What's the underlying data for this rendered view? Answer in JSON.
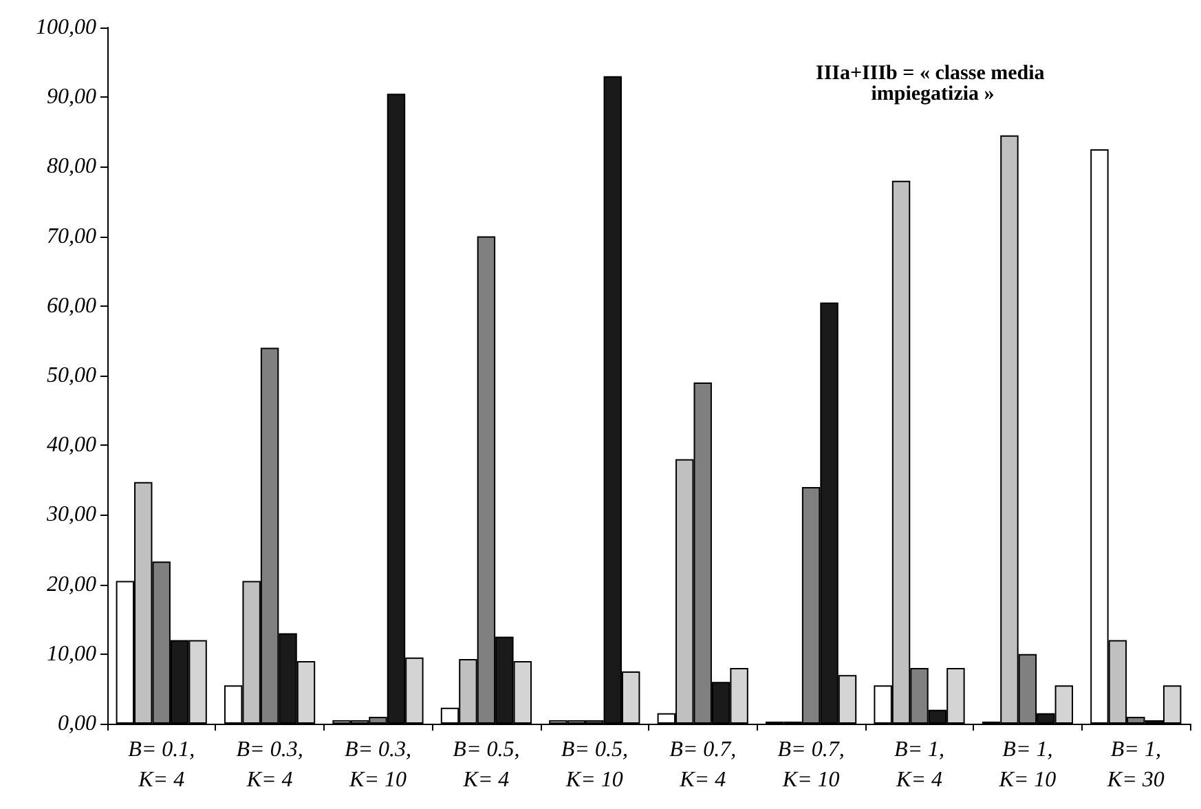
{
  "chart_data": {
    "type": "bar",
    "categories": [
      "B= 0.1,\nK= 4",
      "B= 0.3,\nK= 4",
      "B= 0.3,\nK= 10",
      "B= 0.5,\nK= 4",
      "B= 0.5,\nK= 10",
      "B= 0.7,\nK= 4",
      "B= 0.7,\nK= 10",
      "B= 1,\nK= 4",
      "B= 1,\nK= 10",
      "B= 1,\nK= 30"
    ],
    "series": [
      {
        "color": "#ffffff",
        "values": [
          20.5,
          5.5,
          0.5,
          2.3,
          0.5,
          1.5,
          0.3,
          5.5,
          0.3,
          82.5
        ]
      },
      {
        "color": "#c0c0c0",
        "values": [
          34.7,
          20.5,
          0.5,
          9.3,
          0.5,
          38,
          0.3,
          78,
          84.5,
          12
        ]
      },
      {
        "color": "#808080",
        "values": [
          23.3,
          54,
          1,
          70,
          0.5,
          49,
          34,
          8,
          10,
          1
        ]
      },
      {
        "color": "#1a1a1a",
        "values": [
          12,
          13,
          90.5,
          12.5,
          93,
          6,
          60.5,
          2,
          1.5,
          0.5
        ]
      },
      {
        "color": "#d4d4d4",
        "values": [
          12,
          9,
          9.5,
          9,
          7.5,
          8,
          7,
          8,
          5.5,
          5.5
        ]
      }
    ],
    "ylim": [
      0,
      100
    ],
    "yticks": [
      {
        "value": 0,
        "label": "0,00"
      },
      {
        "value": 10,
        "label": "10,00"
      },
      {
        "value": 20,
        "label": "20,00"
      },
      {
        "value": 30,
        "label": "30,00"
      },
      {
        "value": 40,
        "label": "40,00"
      },
      {
        "value": 50,
        "label": "50,00"
      },
      {
        "value": 60,
        "label": "60,00"
      },
      {
        "value": 70,
        "label": "70,00"
      },
      {
        "value": 80,
        "label": "80,00"
      },
      {
        "value": 90,
        "label": "90,00"
      },
      {
        "value": 100,
        "label": "100,00"
      }
    ],
    "annotations": [
      "IIIa+IIIb = « classe media impiegatizia »"
    ]
  }
}
